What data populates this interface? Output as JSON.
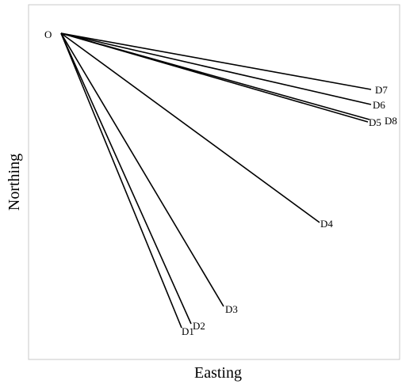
{
  "diagram": {
    "xlabel": "Easting",
    "ylabel": "Northing",
    "origin": {
      "label": "O"
    },
    "rays": [
      {
        "label": "D1"
      },
      {
        "label": "D2"
      },
      {
        "label": "D3"
      },
      {
        "label": "D4"
      },
      {
        "label": "D5"
      },
      {
        "label": "D6"
      },
      {
        "label": "D7"
      },
      {
        "label": "D8"
      }
    ]
  }
}
